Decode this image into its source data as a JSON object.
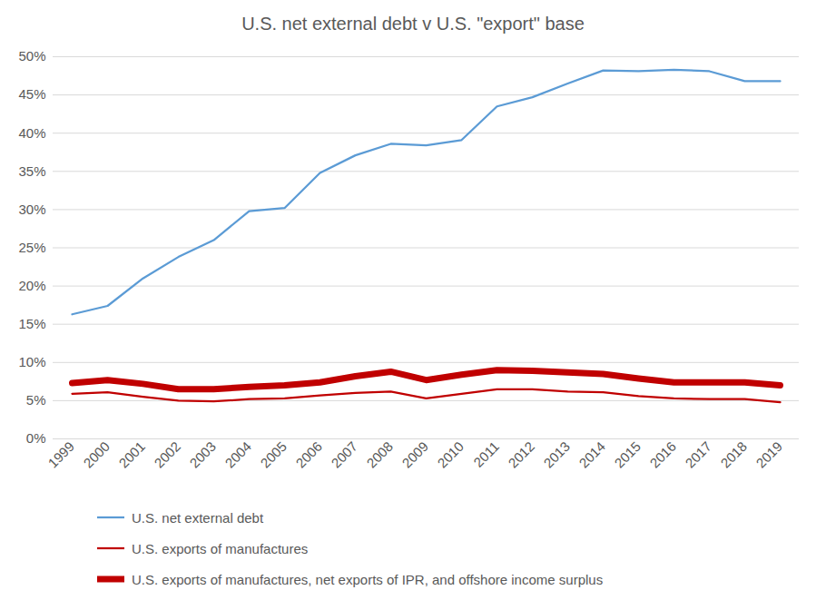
{
  "chart_data": {
    "type": "line",
    "title": "U.S. net external debt v U.S. \"export\" base",
    "categories": [
      "1999",
      "2000",
      "2001",
      "2002",
      "2003",
      "2004",
      "2005",
      "2006",
      "2007",
      "2008",
      "2009",
      "2010",
      "2011",
      "2012",
      "2013",
      "2014",
      "2015",
      "2016",
      "2017",
      "2018",
      "2019"
    ],
    "series": [
      {
        "name": "U.S. net external debt",
        "color": "#5b9bd5",
        "line_style": "solid",
        "values": [
          16.3,
          17.4,
          21.0,
          23.8,
          26.0,
          29.8,
          30.2,
          34.8,
          37.1,
          38.6,
          38.4,
          39.1,
          43.5,
          44.7,
          46.5,
          48.2,
          48.1,
          48.3,
          48.1,
          46.8,
          46.8
        ]
      },
      {
        "name": "U.S. exports of manufactures",
        "color": "#c00000",
        "line_style": "solid",
        "values": [
          5.9,
          6.1,
          5.5,
          5.0,
          4.9,
          5.2,
          5.3,
          5.7,
          6.0,
          6.2,
          5.3,
          5.9,
          6.5,
          6.5,
          6.2,
          6.1,
          5.6,
          5.3,
          5.2,
          5.2,
          4.8
        ]
      },
      {
        "name": "U.S. exports of manufactures, net exports of IPR, and offshore income surplus",
        "color": "#c00000",
        "line_style": "thick",
        "values": [
          7.3,
          7.7,
          7.2,
          6.5,
          6.5,
          6.8,
          7.0,
          7.4,
          8.2,
          8.8,
          7.7,
          8.4,
          9.0,
          8.9,
          8.7,
          8.5,
          7.9,
          7.4,
          7.4,
          7.4,
          7.0
        ]
      }
    ],
    "ylim": [
      0,
      50
    ],
    "yticks": [
      {
        "value": 0,
        "label": "0%"
      },
      {
        "value": 5,
        "label": "5%"
      },
      {
        "value": 10,
        "label": "10%"
      },
      {
        "value": 15,
        "label": "15%"
      },
      {
        "value": 20,
        "label": "20%"
      },
      {
        "value": 25,
        "label": "25%"
      },
      {
        "value": 30,
        "label": "30%"
      },
      {
        "value": 35,
        "label": "35%"
      },
      {
        "value": 40,
        "label": "40%"
      },
      {
        "value": 45,
        "label": "45%"
      },
      {
        "value": 50,
        "label": "50%"
      }
    ],
    "grid": true,
    "legend": "bottom"
  }
}
